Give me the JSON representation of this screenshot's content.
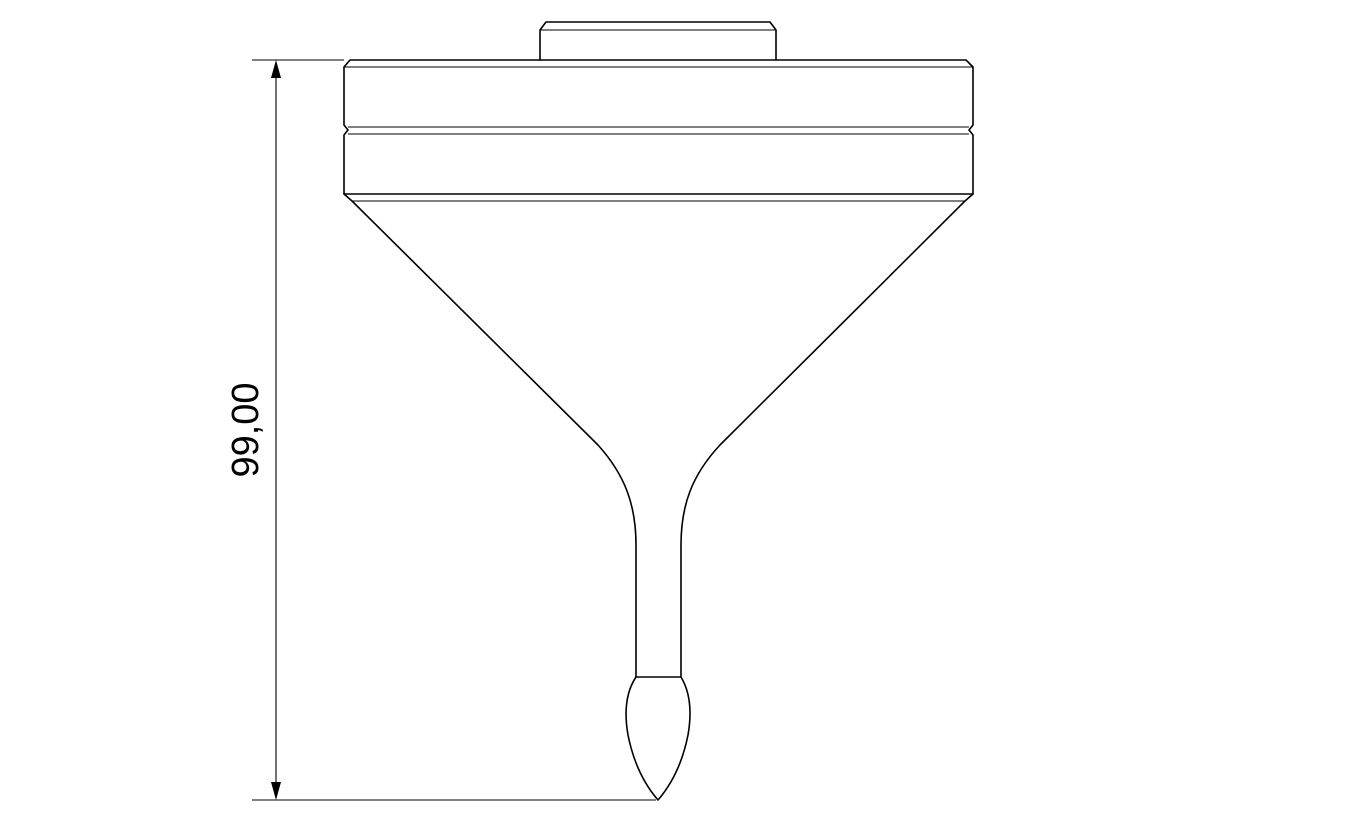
{
  "drawing": {
    "dimension": {
      "value_text": "99,00",
      "orientation": "vertical"
    },
    "stroke_color": "#000000",
    "background_color": "#ffffff"
  }
}
